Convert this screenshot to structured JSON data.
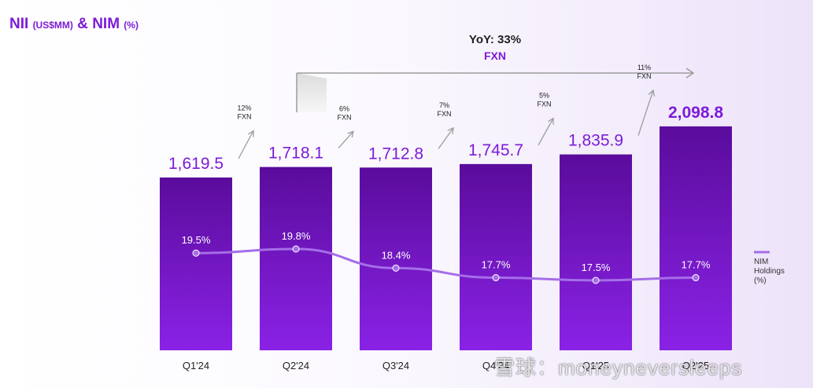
{
  "title": {
    "main1": "NII",
    "unit1": "(US$MM)",
    "amp": "&",
    "main2": "NIM",
    "unit2": "(%)"
  },
  "yoy": {
    "label": "YoY: 33%",
    "sub": "FXN"
  },
  "colors": {
    "accent": "#7c1bd8",
    "bar_top": "#5a0c9c",
    "bar_bottom": "#8a22e6",
    "line": "#a56ee8",
    "arrow": "#9c9c9c"
  },
  "chart_data": {
    "type": "bar",
    "title": "NII (US$MM) & NIM (%)",
    "categories": [
      "Q1'24",
      "Q2'24",
      "Q3'24",
      "Q4'24",
      "Q1'25",
      "Q2'25"
    ],
    "series": [
      {
        "name": "NII (US$MM)",
        "type": "bar",
        "values": [
          1619.5,
          1718.1,
          1712.8,
          1745.7,
          1835.9,
          2098.8
        ],
        "labels": [
          "1,619.5",
          "1,718.1",
          "1,712.8",
          "1,745.7",
          "1,835.9",
          "2,098.8"
        ]
      },
      {
        "name": "NIM Holdings (%)",
        "type": "line",
        "values": [
          19.5,
          19.8,
          18.4,
          17.7,
          17.5,
          17.7
        ],
        "labels": [
          "19.5%",
          "19.8%",
          "18.4%",
          "17.7%",
          "17.5%",
          "17.7%"
        ]
      }
    ],
    "growth": [
      {
        "from": "Q1'24",
        "to": "Q2'24",
        "pct": "12%",
        "unit": "FXN"
      },
      {
        "from": "Q2'24",
        "to": "Q3'24",
        "pct": "6%",
        "unit": "FXN"
      },
      {
        "from": "Q3'24",
        "to": "Q4'24",
        "pct": "7%",
        "unit": "FXN"
      },
      {
        "from": "Q4'24",
        "to": "Q1'25",
        "pct": "5%",
        "unit": "FXN"
      },
      {
        "from": "Q1'25",
        "to": "Q2'25",
        "pct": "11%",
        "unit": "FXN"
      }
    ],
    "legend": {
      "lines": [
        "NIM",
        "Holdings",
        "(%)"
      ],
      "placement": "right"
    }
  },
  "watermark": "雪球：moneyneversleeps"
}
